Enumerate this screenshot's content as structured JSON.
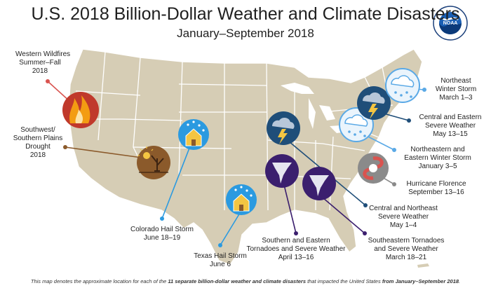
{
  "title": "U.S. 2018 Billion-Dollar Weather and Climate Disasters",
  "subtitle": "January–September 2018",
  "logo": {
    "text": "NOAA",
    "ring_text": "NATIONAL OCEANIC AND ATMOSPHERIC ADMINISTRATION · U.S. DEPARTMENT OF COMMERCE"
  },
  "colors": {
    "land": "#d6cdb5",
    "state_border": "#ffffff",
    "water": "#ffffff",
    "wildfire": "#c0392b",
    "drought": "#8b5a2b",
    "hail": "#2b9ae0",
    "severe_weather": "#1f4e79",
    "tornado": "#3b1f6e",
    "winter_storm": "#5aa9e6",
    "hurricane": "#8a8a8a"
  },
  "events": [
    {
      "id": "western-wildfires",
      "icon": "wildfire-icon",
      "lines": [
        "Western Wildfires",
        "Summer–Fall",
        "2018"
      ]
    },
    {
      "id": "southwest-drought",
      "icon": "drought-icon",
      "lines": [
        "Southwest/",
        "Southern Plains",
        "Drought",
        "2018"
      ]
    },
    {
      "id": "colorado-hail",
      "icon": "hail-house-icon",
      "lines": [
        "Colorado Hail Storm",
        "June 18–19"
      ]
    },
    {
      "id": "texas-hail",
      "icon": "hail-house-icon",
      "lines": [
        "Texas Hail Storm",
        "June 6"
      ]
    },
    {
      "id": "southern-eastern-tornadoes",
      "icon": "tornado-icon",
      "lines": [
        "Southern and Eastern",
        "Tornadoes and Severe Weather",
        "April 13–16"
      ]
    },
    {
      "id": "southeastern-tornadoes",
      "icon": "tornado-icon",
      "lines": [
        "Southeastern Tornadoes",
        "and Severe Weather",
        "March 18–21"
      ]
    },
    {
      "id": "central-northeast-severe",
      "icon": "thunderstorm-icon",
      "lines": [
        "Central and Northeast",
        "Severe Weather",
        "May 1–4"
      ]
    },
    {
      "id": "hurricane-florence",
      "icon": "hurricane-icon",
      "lines": [
        "Hurricane Florence",
        "September 13–16"
      ]
    },
    {
      "id": "northeastern-eastern-winter",
      "icon": "snowstorm-icon",
      "lines": [
        "Northeastern and",
        "Eastern Winter Storm",
        "January 3–5"
      ]
    },
    {
      "id": "central-eastern-severe",
      "icon": "thunderstorm-icon",
      "lines": [
        "Central and Eastern",
        "Severe Weather",
        "May 13–15"
      ]
    },
    {
      "id": "northeast-winter",
      "icon": "snowstorm-icon",
      "lines": [
        "Northeast",
        "Winter Storm",
        "March 1–3"
      ]
    }
  ],
  "footnote": {
    "before": "This map denotes the approximate location for each of the ",
    "bold1": "11 separate billion-dollar weather and climate disasters",
    "middle": " that impacted the United States ",
    "bold2": "from January–September 2018",
    "after": "."
  }
}
